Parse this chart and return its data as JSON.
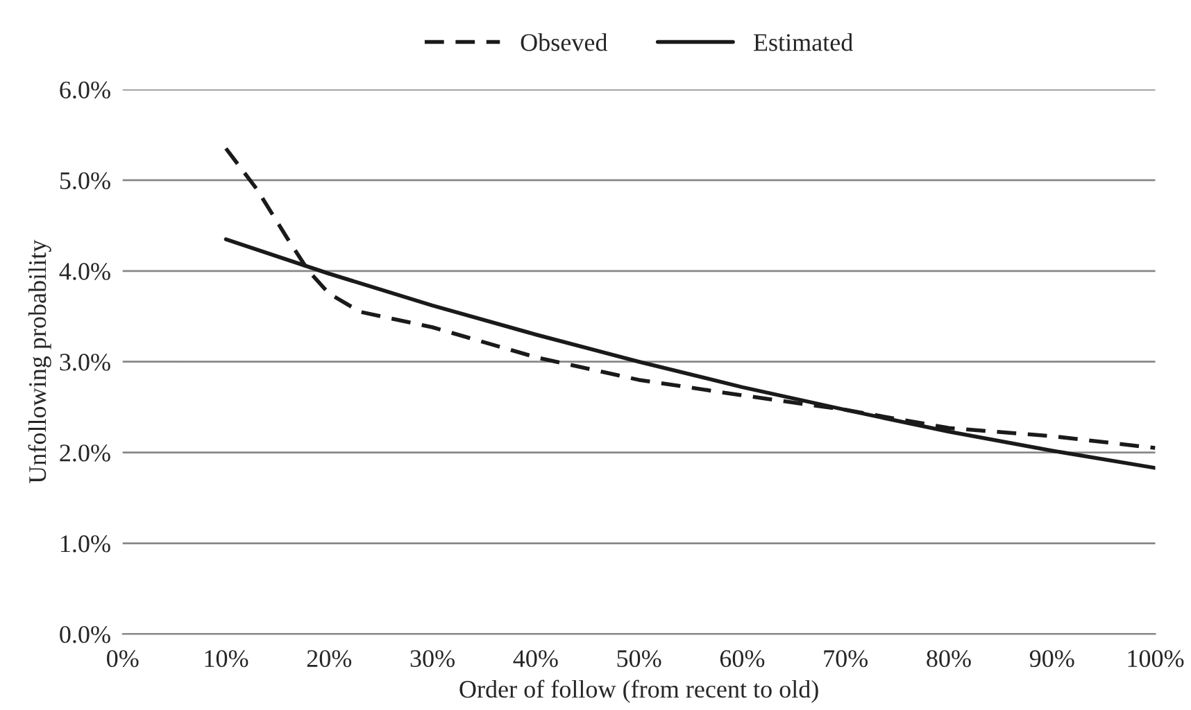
{
  "chart_data": {
    "type": "line",
    "xlabel": "Order of follow (from recent to old)",
    "ylabel": "Unfollowing probability",
    "x": [
      10,
      20,
      30,
      40,
      50,
      60,
      70,
      80,
      90,
      100
    ],
    "series": [
      {
        "name": "Obseved",
        "color": "#1a1a1a",
        "line_style": "dashed",
        "x": [
          10,
          13,
          16,
          18,
          20,
          23,
          30,
          40,
          50,
          60,
          70,
          80,
          90,
          100
        ],
        "values": [
          5.35,
          4.9,
          4.35,
          4.0,
          3.75,
          3.55,
          3.38,
          3.05,
          2.8,
          2.63,
          2.47,
          2.27,
          2.18,
          2.05
        ]
      },
      {
        "name": "Estimated",
        "color": "#1a1a1a",
        "line_style": "solid",
        "values": [
          4.35,
          3.97,
          3.62,
          3.3,
          3.0,
          2.72,
          2.47,
          2.23,
          2.02,
          1.83
        ]
      }
    ],
    "xlim": [
      0,
      100
    ],
    "ylim": [
      0,
      6
    ],
    "xticks": [
      {
        "value": 0,
        "label": "0%"
      },
      {
        "value": 10,
        "label": "10%"
      },
      {
        "value": 20,
        "label": "20%"
      },
      {
        "value": 30,
        "label": "30%"
      },
      {
        "value": 40,
        "label": "40%"
      },
      {
        "value": 50,
        "label": "50%"
      },
      {
        "value": 60,
        "label": "60%"
      },
      {
        "value": 70,
        "label": "70%"
      },
      {
        "value": 80,
        "label": "80%"
      },
      {
        "value": 90,
        "label": "90%"
      },
      {
        "value": 100,
        "label": "100%"
      }
    ],
    "yticks": [
      {
        "value": 0,
        "label": "0.0%"
      },
      {
        "value": 1,
        "label": "1.0%"
      },
      {
        "value": 2,
        "label": "2.0%"
      },
      {
        "value": 3,
        "label": "3.0%"
      },
      {
        "value": 4,
        "label": "4.0%"
      },
      {
        "value": 5,
        "label": "5.0%"
      },
      {
        "value": 6,
        "label": "6.0%"
      }
    ],
    "grid": "y",
    "legend": "top",
    "marker": "none"
  }
}
